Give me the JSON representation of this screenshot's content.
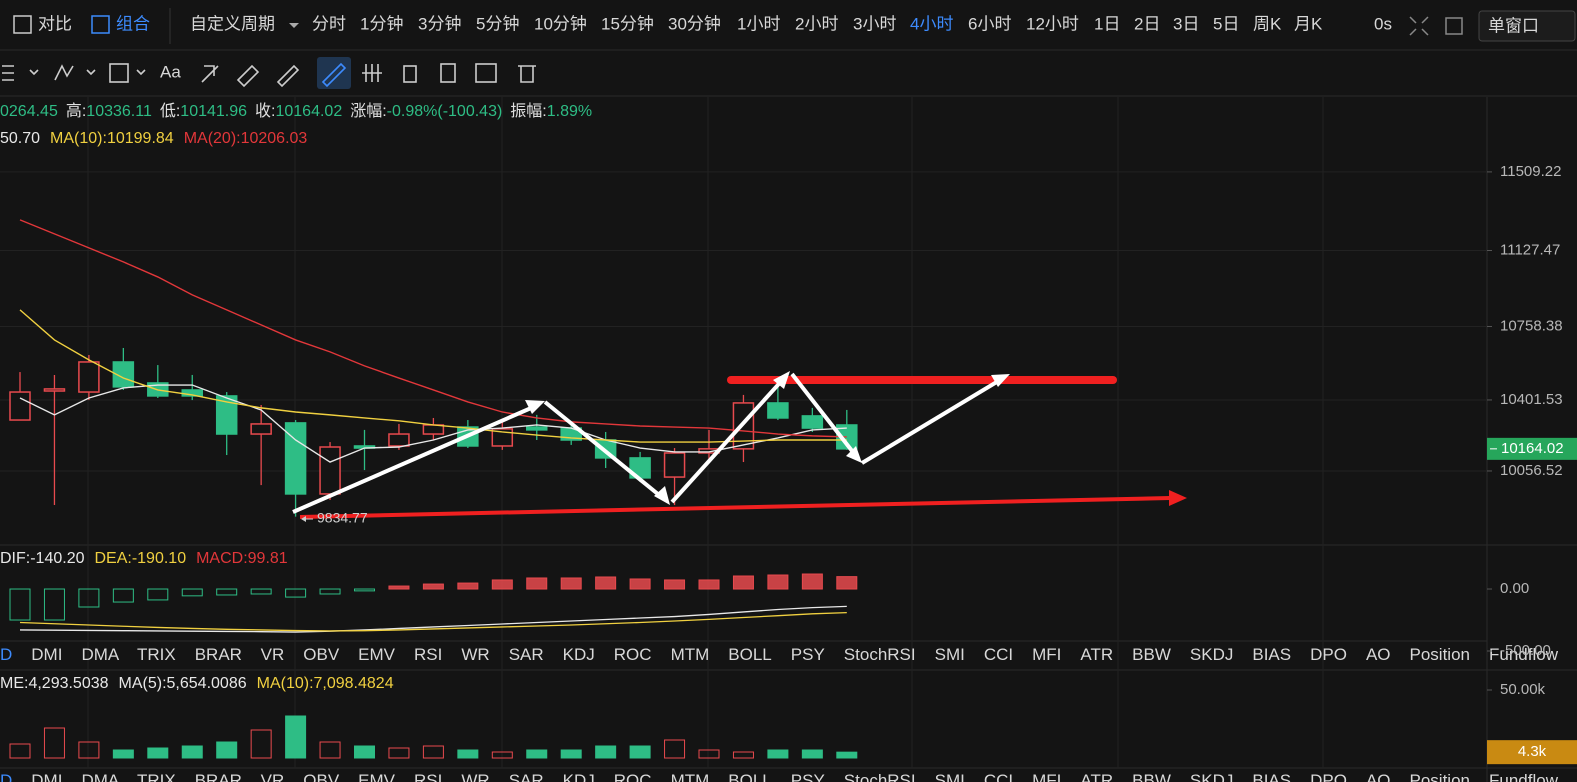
{
  "toolbar": {
    "left": [
      "对比",
      "组合"
    ],
    "period_label": "自定义周期",
    "periods": [
      "分时",
      "1分钟",
      "3分钟",
      "5分钟",
      "10分钟",
      "15分钟",
      "30分钟",
      "1小时",
      "2小时",
      "3小时",
      "4小时",
      "6小时",
      "12小时",
      "1日",
      "2日",
      "3日",
      "5日",
      "周K",
      "月K"
    ],
    "active_period": 10,
    "timer": "0s",
    "window": "单窗口",
    "font_tool": "Aa"
  },
  "price_info": [
    {
      "value": "0264.45"
    },
    {
      "label": "高:",
      "value": "10336.11"
    },
    {
      "label": "低:",
      "value": "10141.96"
    },
    {
      "label": "收:",
      "value": "10164.02"
    },
    {
      "label": "涨幅:",
      "value": "-0.98%(-100.43)"
    },
    {
      "label": "振幅:",
      "value": "1.89%"
    }
  ],
  "ma_info": [
    {
      "text": "50.70",
      "color": "#e8e8e8"
    },
    {
      "text": "MA(10):10199.84",
      "color": "#f0d040"
    },
    {
      "text": "MA(20):10206.03",
      "color": "#e2373a"
    }
  ],
  "macd_info": [
    {
      "text": "DIF:-140.20",
      "color": "#e8e8e8"
    },
    {
      "text": "DEA:-190.10",
      "color": "#f0d040"
    },
    {
      "text": "MACD:99.81",
      "color": "#e2373a"
    }
  ],
  "volume_info": [
    {
      "text": "ME:4,293.5038",
      "color": "#e8e8e8"
    },
    {
      "text": "MA(5):5,654.0086",
      "color": "#e8e8e8"
    },
    {
      "text": "MA(10):7,098.4824",
      "color": "#f0d040"
    }
  ],
  "indicator_tabs": [
    "D",
    "DMI",
    "DMA",
    "TRIX",
    "BRAR",
    "VR",
    "OBV",
    "EMV",
    "RSI",
    "WR",
    "SAR",
    "KDJ",
    "ROC",
    "MTM",
    "BOLL",
    "PSY",
    "StochRSI",
    "SMI",
    "CCI",
    "MFI",
    "ATR",
    "BBW",
    "SKDJ",
    "BIAS",
    "DPO",
    "AO",
    "Position",
    "Fundflow"
  ],
  "chart_data": [
    {
      "type": "candlestick",
      "ylim": [
        9697,
        11873
      ],
      "yticks": [
        10056.52,
        10401.53,
        10758.38,
        11127.47,
        11509.22
      ],
      "grid": true,
      "up_color": "#e84a4e",
      "down_color": "#2ebd85",
      "open": [
        10304,
        10445,
        10440,
        10586,
        10484,
        10450,
        10421,
        10236,
        10290,
        9945,
        10178,
        10178,
        10236,
        10270,
        10178,
        10270,
        10265,
        10207,
        10120,
        10027,
        10144,
        10164,
        10387,
        10324,
        10280
      ],
      "close": [
        10440,
        10455,
        10586,
        10465,
        10421,
        10421,
        10236,
        10285,
        9945,
        10173,
        10168,
        10236,
        10280,
        10178,
        10261,
        10256,
        10207,
        10120,
        10023,
        10144,
        10164,
        10387,
        10314,
        10265,
        10164.02
      ],
      "high": [
        10537,
        10523,
        10620,
        10654,
        10571,
        10523,
        10440,
        10377,
        10304,
        10197,
        10256,
        10285,
        10314,
        10304,
        10304,
        10329,
        10295,
        10246,
        10149,
        10168,
        10256,
        10426,
        10474,
        10363,
        10353
      ],
      "low": [
        10304,
        9891,
        10401,
        10450,
        10411,
        10401,
        10134,
        9988,
        9834.77,
        9916,
        10061,
        10159,
        10207,
        10168,
        10159,
        10207,
        10183,
        10071,
        10003,
        9891,
        10110,
        10100,
        10304,
        10246,
        10159
      ],
      "series": [
        {
          "color": "#e8e8e8",
          "values": [
            10411,
            10329,
            10411,
            10460,
            10474,
            10474,
            10411,
            10353,
            10207,
            10100,
            10168,
            10173,
            10207,
            10256,
            10265,
            10280,
            10265,
            10207,
            10168,
            10149,
            10149,
            10183,
            10217,
            10256,
            10265
          ]
        },
        {
          "color": "#f0d040",
          "values": [
            10839,
            10693,
            10596,
            10508,
            10450,
            10426,
            10392,
            10363,
            10343,
            10329,
            10314,
            10300,
            10280,
            10265,
            10246,
            10231,
            10217,
            10207,
            10197,
            10197,
            10197,
            10202,
            10207,
            10207,
            10207
          ]
        },
        {
          "color": "#e2373a",
          "values": [
            11276,
            11208,
            11140,
            11072,
            10999,
            10912,
            10839,
            10766,
            10693,
            10635,
            10567,
            10508,
            10450,
            10392,
            10343,
            10314,
            10295,
            10285,
            10275,
            10270,
            10265,
            10251,
            10236,
            10227,
            10222
          ]
        }
      ]
    },
    {
      "type": "macd",
      "ylim": [
        -637,
        355
      ],
      "yticks": [
        {
          "value": 0,
          "label": "0.00"
        },
        {
          "value": -500,
          "label": "-500.00"
        }
      ],
      "up_color": "#e84a4e",
      "down_color": "#2ebd85",
      "values": [
        -250,
        -250,
        -145,
        -105,
        -88,
        -55,
        -48,
        -40,
        -65,
        -40,
        -15,
        24,
        40,
        48,
        73,
        89,
        89,
        97,
        81,
        73,
        73,
        105,
        113,
        121,
        99.81
      ],
      "series": [
        {
          "color": "#e8e8e8",
          "values": [
            -330,
            -332,
            -334,
            -336,
            -338,
            -340,
            -342,
            -344,
            -347,
            -340,
            -330,
            -318,
            -306,
            -294,
            -282,
            -270,
            -258,
            -246,
            -234,
            -222,
            -205,
            -185,
            -165,
            -150,
            -140.2
          ]
        },
        {
          "color": "#f0d040",
          "values": [
            -270,
            -280,
            -290,
            -300,
            -310,
            -318,
            -325,
            -330,
            -335,
            -338,
            -336,
            -330,
            -322,
            -314,
            -306,
            -298,
            -290,
            -280,
            -270,
            -258,
            -245,
            -230,
            -215,
            -200,
            -190.1
          ]
        }
      ]
    },
    {
      "type": "volume",
      "ylim": [
        0,
        64706
      ],
      "yticks": [
        {
          "value": 50000,
          "label": "50.00k"
        }
      ],
      "tag_color": "#c98a12",
      "values": [
        10294,
        22059,
        11765,
        5882,
        7353,
        8824,
        11765,
        20588,
        30882,
        11765,
        8824,
        7353,
        8824,
        5882,
        4412,
        5882,
        5882,
        8824,
        8824,
        13235,
        5882,
        4412,
        5882,
        5882,
        4293.5038
      ],
      "value_labels": [
        null,
        null,
        null,
        null,
        null,
        null,
        null,
        null,
        null,
        null,
        null,
        null,
        null,
        null,
        null,
        null,
        null,
        null,
        null,
        null,
        null,
        null,
        null,
        null,
        "4.3k"
      ]
    }
  ]
}
